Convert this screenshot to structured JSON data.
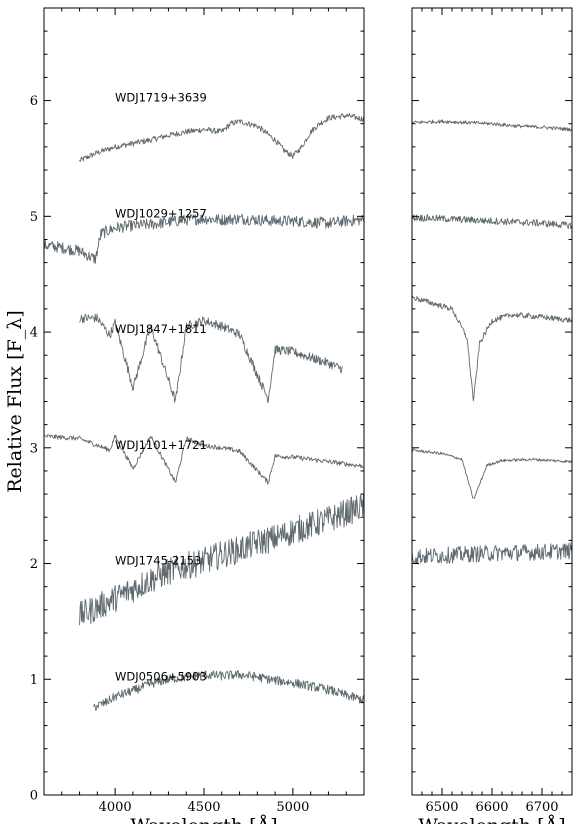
{
  "chart_data": {
    "type": "line",
    "ylabel": "Relative Flux [F_λ]",
    "yticks": [
      0,
      1,
      2,
      3,
      4,
      5,
      6
    ],
    "ylim": [
      0,
      6.8
    ],
    "line_color": "#5f6a70",
    "panels": [
      {
        "name": "main",
        "xlabel": "Wavelength [Å]",
        "xlim": [
          3600,
          5400
        ],
        "xticks": [
          4000,
          4500,
          5000
        ]
      },
      {
        "name": "halpha",
        "xlabel": "Wavelength [Å]",
        "xlim": [
          6440,
          6760
        ],
        "xticks": [
          6500,
          6600,
          6700
        ]
      }
    ],
    "series": [
      {
        "name": "WDJ1719+3639",
        "label_y": 6.0,
        "blue": {
          "x": [
            3800,
            3900,
            4000,
            4100,
            4200,
            4300,
            4400,
            4500,
            4600,
            4650,
            4700,
            4800,
            4900,
            4950,
            5000,
            5050,
            5100,
            5150,
            5200,
            5300,
            5400
          ],
          "y": [
            5.48,
            5.55,
            5.6,
            5.63,
            5.66,
            5.7,
            5.73,
            5.75,
            5.73,
            5.8,
            5.82,
            5.78,
            5.66,
            5.57,
            5.52,
            5.6,
            5.73,
            5.8,
            5.85,
            5.87,
            5.84
          ]
        },
        "red": {
          "x": [
            6440,
            6500,
            6550,
            6600,
            6650,
            6700,
            6760
          ],
          "y": [
            5.81,
            5.82,
            5.81,
            5.8,
            5.78,
            5.77,
            5.75
          ]
        },
        "noise": 0.025
      },
      {
        "name": "WDJ1029+1257",
        "label_y": 5.0,
        "blue": {
          "x": [
            3600,
            3700,
            3800,
            3860,
            3890,
            3920,
            4000,
            4100,
            4200,
            4300,
            4400,
            4500,
            4600,
            4700,
            4800,
            4900,
            5000,
            5100,
            5200,
            5300,
            5400
          ],
          "y": [
            4.75,
            4.73,
            4.7,
            4.65,
            4.63,
            4.85,
            4.9,
            4.92,
            4.93,
            4.95,
            4.97,
            4.98,
            4.97,
            4.98,
            4.97,
            4.96,
            4.96,
            4.95,
            4.94,
            4.96,
            4.97
          ]
        },
        "red": {
          "x": [
            6440,
            6500,
            6550,
            6600,
            6650,
            6700,
            6760
          ],
          "y": [
            4.99,
            4.98,
            4.97,
            4.96,
            4.95,
            4.94,
            4.92
          ]
        },
        "noise": 0.05
      },
      {
        "name": "WDJ1847+1811",
        "label_y": 4.0,
        "blue": {
          "x": [
            3800,
            3900,
            3970,
            4000,
            4101,
            4200,
            4340,
            4400,
            4500,
            4600,
            4700,
            4861,
            4900,
            5000,
            5100,
            5200,
            5280
          ],
          "y": [
            4.12,
            4.12,
            3.97,
            4.08,
            3.52,
            4.05,
            3.4,
            4.05,
            4.1,
            4.05,
            3.98,
            3.42,
            3.85,
            3.83,
            3.78,
            3.73,
            3.68
          ]
        },
        "red": {
          "x": [
            6440,
            6480,
            6520,
            6550,
            6563,
            6575,
            6600,
            6640,
            6700,
            6760
          ],
          "y": [
            4.3,
            4.25,
            4.2,
            3.95,
            3.4,
            3.9,
            4.1,
            4.15,
            4.13,
            4.1
          ]
        },
        "noise": 0.04
      },
      {
        "name": "WDJ1101+1721",
        "label_y": 3.0,
        "blue": {
          "x": [
            3600,
            3800,
            3970,
            4000,
            4101,
            4200,
            4340,
            4400,
            4500,
            4600,
            4700,
            4861,
            4900,
            5000,
            5100,
            5200,
            5300,
            5400
          ],
          "y": [
            3.1,
            3.08,
            2.98,
            3.1,
            2.82,
            3.1,
            2.7,
            3.08,
            3.02,
            3.0,
            2.97,
            2.7,
            2.93,
            2.92,
            2.9,
            2.88,
            2.86,
            2.84
          ]
        },
        "red": {
          "x": [
            6440,
            6500,
            6540,
            6563,
            6590,
            6620,
            6680,
            6760
          ],
          "y": [
            2.98,
            2.95,
            2.9,
            2.55,
            2.85,
            2.89,
            2.9,
            2.88
          ]
        },
        "noise": 0.02
      },
      {
        "name": "WDJ1745-2153",
        "label_y": 2.0,
        "blue": {
          "x": [
            3800,
            3900,
            4000,
            4100,
            4200,
            4300,
            4400,
            4500,
            4600,
            4700,
            4800,
            4900,
            5000,
            5100,
            5200,
            5300,
            5400
          ],
          "y": [
            1.55,
            1.62,
            1.7,
            1.78,
            1.86,
            1.93,
            1.98,
            2.02,
            2.08,
            2.12,
            2.18,
            2.22,
            2.28,
            2.33,
            2.38,
            2.44,
            2.5
          ]
        },
        "red": {
          "x": [
            6440,
            6500,
            6600,
            6700,
            6760
          ],
          "y": [
            2.06,
            2.07,
            2.09,
            2.1,
            2.11
          ]
        },
        "noise": 0.12
      },
      {
        "name": "WDJ0506+5903",
        "label_y": 1.0,
        "blue": {
          "x": [
            3880,
            3950,
            4000,
            4100,
            4200,
            4300,
            4400,
            4500,
            4600,
            4700,
            4800,
            4900,
            5000,
            5100,
            5200,
            5300,
            5400
          ],
          "y": [
            0.76,
            0.8,
            0.85,
            0.9,
            0.96,
            1.0,
            1.02,
            1.04,
            1.03,
            1.04,
            1.02,
            0.99,
            0.97,
            0.94,
            0.91,
            0.86,
            0.82
          ]
        },
        "red": null,
        "noise": 0.04
      }
    ]
  }
}
